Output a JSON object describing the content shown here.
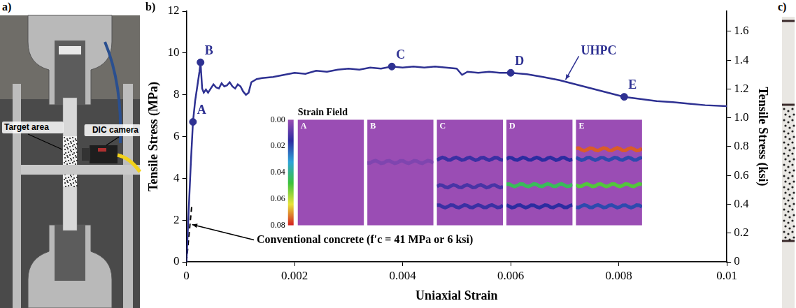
{
  "chart_data": {
    "type": "line",
    "panel_label": "b)",
    "x_label": "Uniaxial Strain",
    "y_label": "Tensile Stress (MPa)",
    "y2_label": "Tensile Stress (ksi)",
    "xlim": [
      0,
      0.01
    ],
    "xticks": [
      0,
      0.002,
      0.004,
      0.006,
      0.008,
      0.01
    ],
    "ylim": [
      0,
      12
    ],
    "yticks": [
      0,
      2,
      4,
      6,
      8,
      10,
      12
    ],
    "y2lim": [
      0,
      1.74
    ],
    "y2ticks": [
      0,
      0.2,
      0.4,
      0.6,
      0.8,
      {
        "value": 1,
        "label": "1.0"
      },
      1.2,
      1.4,
      1.6
    ],
    "grid": false,
    "series": [
      {
        "name": "UHPC",
        "color": "#2e3192",
        "line_style": "solid",
        "x": [
          0,
          4e-05,
          8e-05,
          0.00012,
          0.00016,
          0.0002,
          0.00024,
          0.00026,
          0.00029,
          0.00032,
          0.00036,
          0.0004,
          0.00045,
          0.0005,
          0.00055,
          0.0006,
          0.00065,
          0.0007,
          0.00075,
          0.0008,
          0.00085,
          0.0009,
          0.00095,
          0.001,
          0.00105,
          0.0011,
          0.00115,
          0.0012,
          0.0013,
          0.0014,
          0.0016,
          0.0018,
          0.002,
          0.0022,
          0.0024,
          0.0026,
          0.0028,
          0.003,
          0.0032,
          0.0034,
          0.0036,
          0.0038,
          0.004,
          0.0042,
          0.0044,
          0.0046,
          0.0048,
          0.005,
          0.0051,
          0.0052,
          0.0054,
          0.0056,
          0.0058,
          0.006,
          0.0063,
          0.0066,
          0.0069,
          0.0072,
          0.0075,
          0.0078,
          0.0081,
          0.0084,
          0.0087,
          0.009,
          0.0093,
          0.0096,
          0.01
        ],
        "values": [
          0,
          2.4,
          4.7,
          6.7,
          7.7,
          8.4,
          9.1,
          9.55,
          8.3,
          8.1,
          8.25,
          8.1,
          8.3,
          8.5,
          8.35,
          8.3,
          8.55,
          8.4,
          8.45,
          8.6,
          8.4,
          8.3,
          8.5,
          8.4,
          8.15,
          8.0,
          8.1,
          8.6,
          8.75,
          8.8,
          8.85,
          8.95,
          9.05,
          9.0,
          9.15,
          9.1,
          9.2,
          9.25,
          9.2,
          9.3,
          9.25,
          9.35,
          9.3,
          9.35,
          9.3,
          9.35,
          9.3,
          9.25,
          8.95,
          9.1,
          9.05,
          9.1,
          9.05,
          9.05,
          8.98,
          8.85,
          8.7,
          8.5,
          8.3,
          8.1,
          7.9,
          7.8,
          7.7,
          7.65,
          7.57,
          7.5,
          7.45
        ]
      },
      {
        "name": "Conventional concrete (f′c = 41 MPa or 6 ksi)",
        "color": "#000000",
        "line_style": "dashed",
        "x": [
          0,
          0.0001
        ],
        "values": [
          0,
          2.75
        ]
      }
    ],
    "points": {
      "labels": [
        "A",
        "B",
        "C",
        "D",
        "E"
      ],
      "x": [
        0.00012,
        0.00026,
        0.0038,
        0.006,
        0.0081
      ],
      "values": [
        6.7,
        9.55,
        9.35,
        9.05,
        7.9
      ],
      "color": "#2e3192",
      "marker": "circle"
    },
    "strain_field": {
      "title": "Strain Field",
      "panels": [
        "A",
        "B",
        "C",
        "D",
        "E"
      ],
      "colorbar_range": [
        0,
        0.08
      ],
      "colorbar_ticks": [
        {
          "value": 0,
          "label": "0.00"
        },
        0.02,
        0.04,
        0.06,
        0.08
      ],
      "colors": [
        "#9a4db4",
        "#2c2ca0",
        "#2ea3d8",
        "#3cc23c",
        "#e8e23a",
        "#d42020"
      ],
      "bands": [
        [],
        [
          [
            0.4,
            0.004
          ]
        ],
        [
          [
            0.37,
            0.014
          ],
          [
            0.63,
            0.012
          ],
          [
            0.82,
            0.014
          ]
        ],
        [
          [
            0.37,
            0.016
          ],
          [
            0.62,
            0.045
          ],
          [
            0.82,
            0.016
          ]
        ],
        [
          [
            0.28,
            0.075
          ],
          [
            0.37,
            0.02
          ],
          [
            0.62,
            0.05
          ],
          [
            0.82,
            0.02
          ]
        ]
      ]
    }
  },
  "photo_a": {
    "panel_label": "a)",
    "labels": [
      "Target area",
      "DIC camera"
    ]
  },
  "photo_c": {
    "panel_label": "c)"
  }
}
